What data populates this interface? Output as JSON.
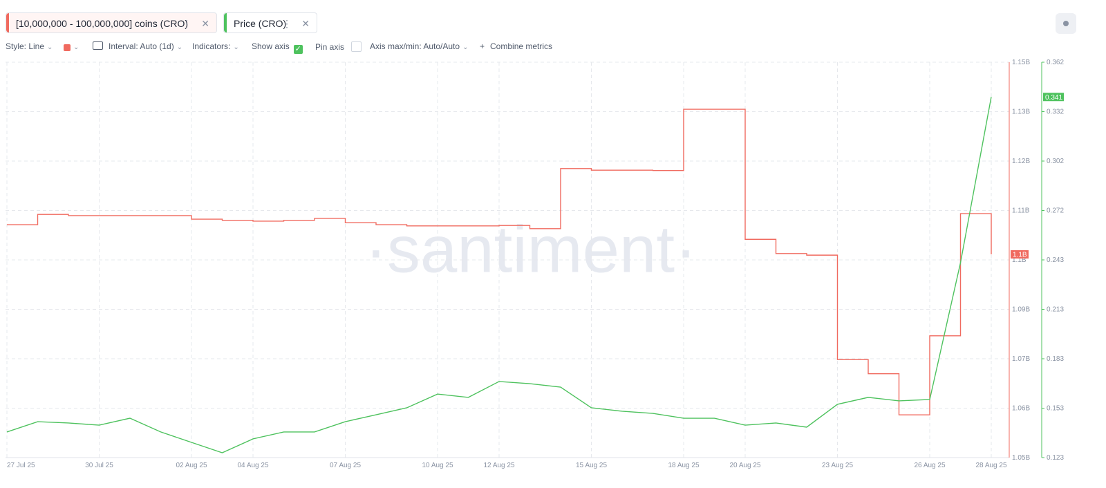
{
  "toolbar": {
    "style": "Style: Line",
    "interval": "Interval: Auto (1d)",
    "indicators": "Indicators:",
    "show_axis": "Show axis",
    "pin_axis": "Pin axis",
    "axis_maxmin": "Axis max/min: Auto/Auto",
    "combine": "Combine metrics"
  },
  "chart_data": {
    "type": "line",
    "watermark": "·santiment·",
    "grid": true,
    "x": [
      "27 Jul 25",
      null,
      null,
      "30 Jul 25",
      null,
      null,
      "02 Aug 25",
      null,
      "04 Aug 25",
      null,
      null,
      "07 Aug 25",
      null,
      null,
      "10 Aug 25",
      null,
      "12 Aug 25",
      null,
      null,
      "15 Aug 25",
      null,
      null,
      "18 Aug 25",
      null,
      "20 Aug 25",
      null,
      null,
      "23 Aug 25",
      null,
      null,
      "26 Aug 25",
      null,
      "28 Aug 25"
    ],
    "ylim": [
      1050000000,
      1150000000
    ],
    "yticks": [
      {
        "value": 1050000000,
        "label": "1.05B"
      },
      {
        "value": 1062500000,
        "label": "1.06B"
      },
      {
        "value": 1075000000,
        "label": "1.07B"
      },
      {
        "value": 1087500000,
        "label": "1.09B"
      },
      {
        "value": 1100000000,
        "label": "1.1B"
      },
      {
        "value": 1112500000,
        "label": "1.11B"
      },
      {
        "value": 1125000000,
        "label": "1.12B"
      },
      {
        "value": 1137500000,
        "label": "1.13B"
      },
      {
        "value": 1150000000,
        "label": "1.15B"
      }
    ],
    "y2lim": [
      0.123,
      0.362
    ],
    "y2ticks": [
      0.123,
      {
        "value": 0.152875,
        "label": "0.153"
      },
      {
        "value": 0.18275,
        "label": "0.183"
      },
      {
        "value": 0.212625,
        "label": "0.213"
      },
      {
        "value": 0.2425,
        "label": "0.243"
      },
      {
        "value": 0.272375,
        "label": "0.272"
      },
      {
        "value": 0.30225,
        "label": "0.302"
      },
      {
        "value": 0.332125,
        "label": "0.332"
      },
      0.362
    ],
    "series": [
      {
        "name": "[10,000,000 - 100,000,000] coins (CRO)",
        "color": "#f06a5f",
        "axis": "y",
        "step": true,
        "values": [
          1108900000,
          1111500000,
          1111200000,
          1111200000,
          1111200000,
          1111200000,
          1110300000,
          1110000000,
          1109800000,
          1110000000,
          1110500000,
          1109400000,
          1108900000,
          1108600000,
          1108600000,
          1108600000,
          1108700000,
          1107900000,
          1123100000,
          1122700000,
          1122700000,
          1122600000,
          1138100000,
          1138100000,
          1105200000,
          1101600000,
          1101200000,
          1074800000,
          1071200000,
          1060800000,
          1080800000,
          1111700000,
          1101400000
        ],
        "value_labels": [
          null,
          null,
          null,
          null,
          null,
          null,
          null,
          null,
          null,
          null,
          null,
          null,
          null,
          null,
          null,
          null,
          null,
          null,
          null,
          null,
          null,
          null,
          null,
          null,
          null,
          null,
          null,
          null,
          null,
          null,
          null,
          null,
          "1.1B"
        ]
      },
      {
        "name": "Price (CRO)",
        "color": "#4ec25e",
        "axis": "y2",
        "step": false,
        "values": [
          0.1385,
          0.1447,
          0.1439,
          0.1426,
          0.1468,
          0.1385,
          0.1322,
          0.1259,
          0.1343,
          0.1385,
          0.1385,
          0.1447,
          0.1489,
          0.1531,
          0.1614,
          0.1594,
          0.169,
          0.1677,
          0.1656,
          0.1531,
          0.151,
          0.1497,
          0.1468,
          0.1468,
          0.1426,
          0.1439,
          0.1414,
          0.1552,
          0.1594,
          0.1573,
          0.1581,
          0.2408,
          0.341
        ],
        "value_labels": [
          null,
          null,
          null,
          null,
          null,
          null,
          null,
          null,
          null,
          null,
          null,
          null,
          null,
          null,
          null,
          null,
          null,
          null,
          null,
          null,
          null,
          null,
          null,
          null,
          null,
          null,
          null,
          null,
          null,
          null,
          null,
          null,
          "0.341"
        ]
      }
    ]
  }
}
